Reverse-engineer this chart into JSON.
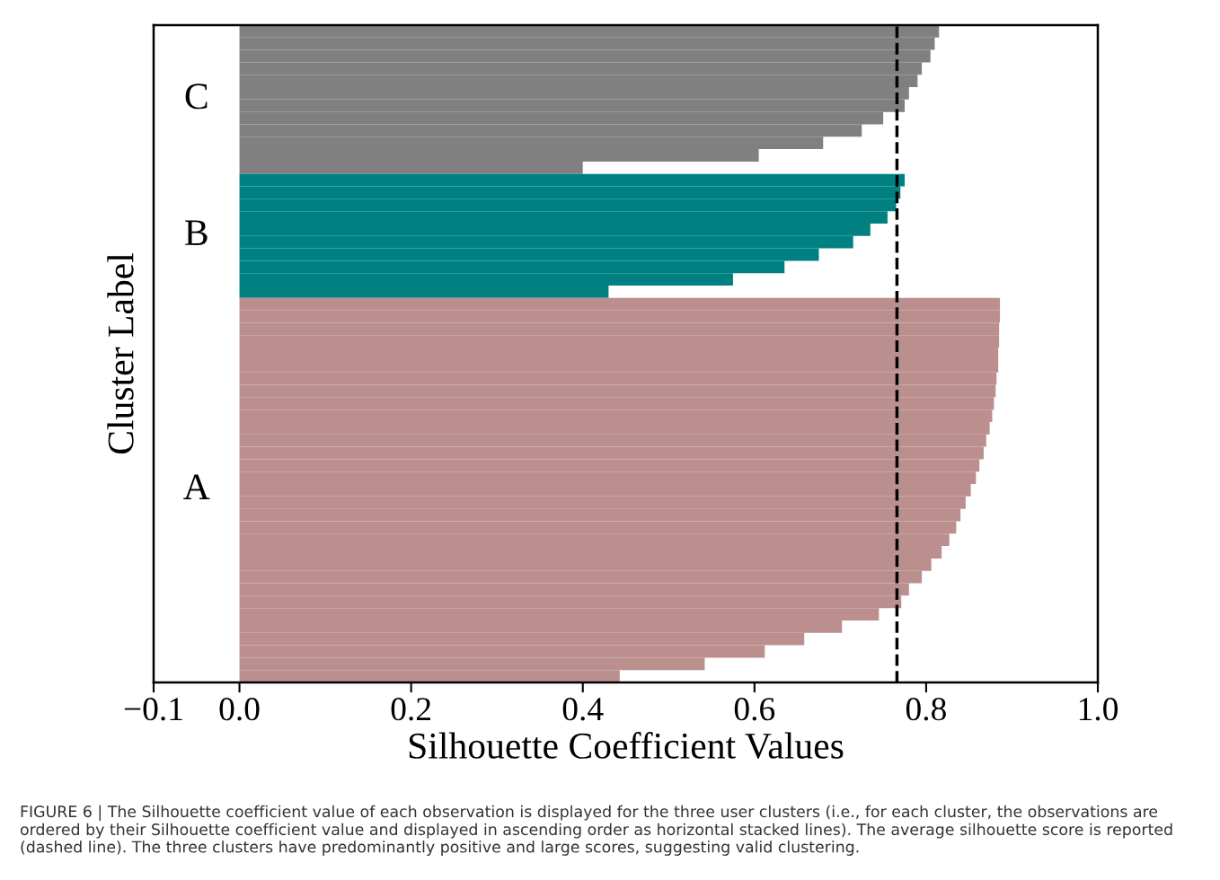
{
  "chart_data": {
    "type": "bar",
    "orientation": "horizontal",
    "xlabel": "Silhouette Coefficient Values",
    "ylabel": "Cluster Label",
    "categories": [
      null,
      null,
      null,
      null,
      null,
      null,
      null,
      null,
      null,
      null,
      null,
      null,
      null,
      null,
      null,
      null,
      null,
      null,
      null,
      null,
      null,
      null,
      null,
      null,
      null,
      null,
      null,
      null,
      null,
      null,
      null,
      null,
      null,
      null,
      null,
      null,
      null,
      null,
      null,
      null,
      null,
      null,
      null,
      null,
      null,
      null,
      null,
      null,
      null,
      null,
      null,
      null,
      null
    ],
    "series": [
      {
        "name": "C",
        "color": "#808080",
        "values": [
          0.815,
          0.81,
          0.805,
          0.795,
          0.79,
          0.78,
          0.775,
          0.75,
          0.725,
          0.68,
          0.605,
          0.4,
          null,
          null,
          null,
          null,
          null,
          null,
          null,
          null,
          null,
          null,
          null,
          null,
          null,
          null,
          null,
          null,
          null,
          null,
          null,
          null,
          null,
          null,
          null,
          null,
          null,
          null,
          null,
          null,
          null,
          null,
          null,
          null,
          null,
          null,
          null,
          null,
          null,
          null,
          null,
          null,
          null
        ]
      },
      {
        "name": "B",
        "color": "#008080",
        "values": [
          null,
          null,
          null,
          null,
          null,
          null,
          null,
          null,
          null,
          null,
          null,
          null,
          0.775,
          0.77,
          0.765,
          0.755,
          0.735,
          0.715,
          0.675,
          0.635,
          0.575,
          0.43,
          null,
          null,
          null,
          null,
          null,
          null,
          null,
          null,
          null,
          null,
          null,
          null,
          null,
          null,
          null,
          null,
          null,
          null,
          null,
          null,
          null,
          null,
          null,
          null,
          null,
          null,
          null,
          null,
          null,
          null,
          null
        ]
      },
      {
        "name": "A",
        "color": "#bc8f8f",
        "values": [
          null,
          null,
          null,
          null,
          null,
          null,
          null,
          null,
          null,
          null,
          null,
          null,
          null,
          null,
          null,
          null,
          null,
          null,
          null,
          null,
          null,
          null,
          0.886,
          0.886,
          0.885,
          0.885,
          0.884,
          0.884,
          0.882,
          0.881,
          0.879,
          0.877,
          0.874,
          0.87,
          0.867,
          0.862,
          0.858,
          0.852,
          0.846,
          0.84,
          0.835,
          0.827,
          0.818,
          0.806,
          0.795,
          0.78,
          0.771,
          0.745,
          0.702,
          0.658,
          0.612,
          0.542,
          0.443
        ]
      }
    ],
    "xlim": [
      -0.1,
      1.0
    ],
    "xticks": [
      {
        "value": -0.1,
        "label": "−0.1"
      },
      {
        "value": 0,
        "label": "0.0"
      },
      {
        "value": 0.2,
        "label": "0.2"
      },
      {
        "value": 0.4,
        "label": "0.4"
      },
      {
        "value": 0.6,
        "label": "0.6"
      },
      {
        "value": 0.8,
        "label": "0.8"
      },
      {
        "value": 1.0,
        "label": "1.0"
      }
    ],
    "tick_labels": "x",
    "grid": false,
    "legend": false,
    "ref_lines": [
      {
        "axis": "x",
        "value": 0.766,
        "color": "#000000",
        "line_style": "dashed"
      }
    ],
    "annotations": [
      "FIGURE 6 | The Silhouette coefficient value of each observation is displayed for the three user clusters (i.e., for each cluster, the observations are ordered by their Silhouette coefficient value and displayed in ascending order as horizontal stacked lines). The average silhouette score is reported (dashed line). The three clusters have predominantly positive and large scores, suggesting valid clustering."
    ]
  }
}
